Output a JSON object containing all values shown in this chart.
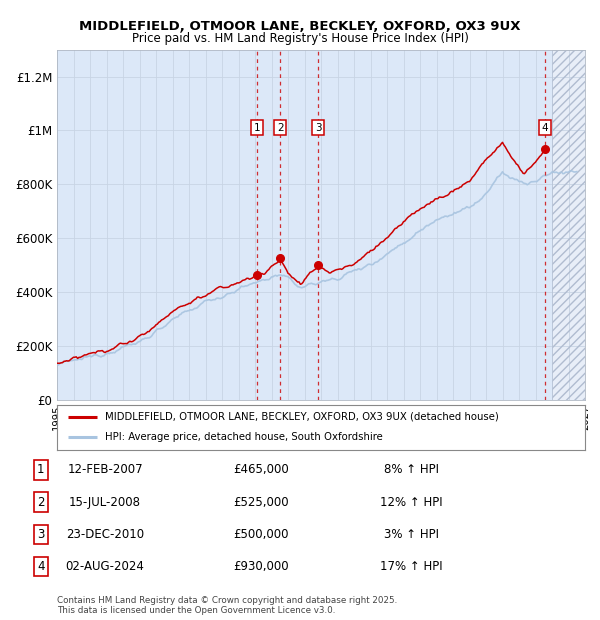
{
  "title1": "MIDDLEFIELD, OTMOOR LANE, BECKLEY, OXFORD, OX3 9UX",
  "title2": "Price paid vs. HM Land Registry's House Price Index (HPI)",
  "ylim": [
    0,
    1300000
  ],
  "yticks": [
    0,
    200000,
    400000,
    600000,
    800000,
    1000000,
    1200000
  ],
  "ytick_labels": [
    "£0",
    "£200K",
    "£400K",
    "£600K",
    "£800K",
    "£1M",
    "£1.2M"
  ],
  "hpi_color": "#a8c4e0",
  "price_color": "#cc0000",
  "dashed_line_color": "#cc0000",
  "legend_house_label": "MIDDLEFIELD, OTMOOR LANE, BECKLEY, OXFORD, OX3 9UX (detached house)",
  "legend_hpi_label": "HPI: Average price, detached house, South Oxfordshire",
  "sale_points": [
    {
      "num": 1,
      "year": 2007.12,
      "price": 465000
    },
    {
      "num": 2,
      "year": 2008.54,
      "price": 525000
    },
    {
      "num": 3,
      "year": 2010.83,
      "price": 500000
    },
    {
      "num": 4,
      "year": 2024.59,
      "price": 930000
    }
  ],
  "table_rows": [
    {
      "num": 1,
      "date": "12-FEB-2007",
      "price": "£465,000",
      "pct": "8% ↑ HPI"
    },
    {
      "num": 2,
      "date": "15-JUL-2008",
      "price": "£525,000",
      "pct": "12% ↑ HPI"
    },
    {
      "num": 3,
      "date": "23-DEC-2010",
      "price": "£500,000",
      "pct": "3% ↑ HPI"
    },
    {
      "num": 4,
      "date": "02-AUG-2024",
      "price": "£930,000",
      "pct": "17% ↑ HPI"
    }
  ],
  "copyright_text": "Contains HM Land Registry data © Crown copyright and database right 2025.\nThis data is licensed under the Open Government Licence v3.0.",
  "xmin": 1995,
  "xmax": 2027,
  "future_start": 2025.0,
  "grid_color": "#c8d4e4",
  "background_color": "#dce8f8",
  "future_bg_color": "#e8eef8"
}
